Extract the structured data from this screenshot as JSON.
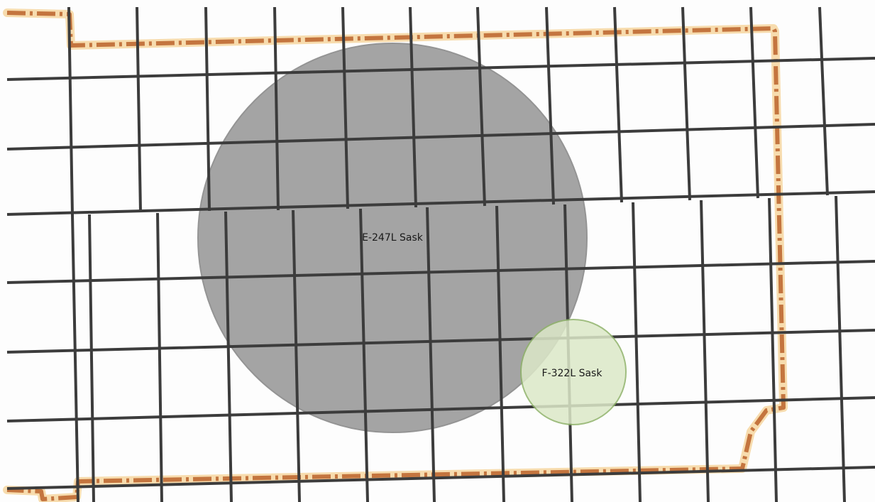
{
  "map": {
    "background_color": "#fdfdfd",
    "grid_color": "#3c3c3c",
    "boundary": {
      "line_color": "#c4753f",
      "halo_color": "#f7dcae"
    },
    "features": [
      {
        "id": "e247l",
        "label": "E-247L Sask",
        "fill_color": "#8f8f8f",
        "stroke_color": "#7a7a7a",
        "opacity": 0.8
      },
      {
        "id": "f322l",
        "label": "F-322L Sask",
        "fill_color": "#dce8c8",
        "stroke_color": "#8fb36a",
        "opacity": 0.85
      }
    ]
  }
}
